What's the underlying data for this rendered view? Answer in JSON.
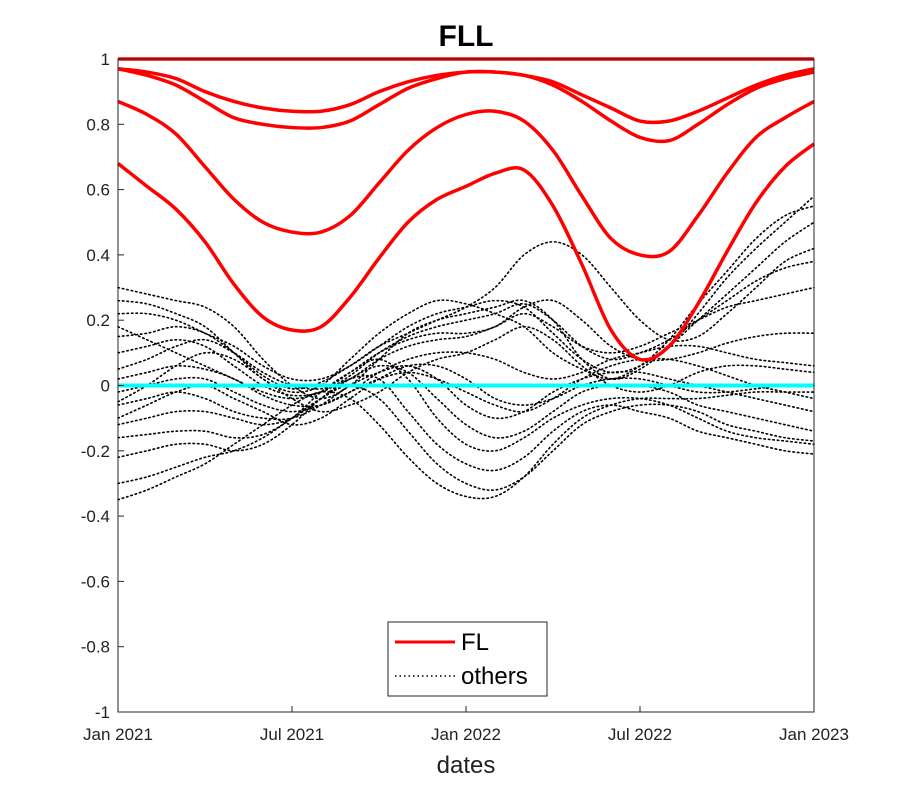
{
  "chart_data": {
    "type": "line",
    "title": "FLL",
    "xlabel": "dates",
    "ylabel": "",
    "xlim": [
      0,
      24
    ],
    "ylim": [
      -1,
      1
    ],
    "x_ticks": [
      {
        "value": 0,
        "label": "Jan 2021"
      },
      {
        "value": 6,
        "label": "Jul 2021"
      },
      {
        "value": 12,
        "label": "Jan 2022"
      },
      {
        "value": 18,
        "label": "Jul 2022"
      },
      {
        "value": 24,
        "label": "Jan 2023"
      }
    ],
    "y_ticks": [
      {
        "value": 1,
        "label": "1"
      },
      {
        "value": 0.8,
        "label": "0.8"
      },
      {
        "value": 0.6,
        "label": "0.6"
      },
      {
        "value": 0.4,
        "label": "0.4"
      },
      {
        "value": 0.2,
        "label": "0.2"
      },
      {
        "value": 0,
        "label": "0"
      },
      {
        "value": -0.2,
        "label": "-0.2"
      },
      {
        "value": -0.4,
        "label": "-0.4"
      },
      {
        "value": -0.6,
        "label": "-0.6"
      },
      {
        "value": -0.8,
        "label": "-0.8"
      },
      {
        "value": -1,
        "label": "-1"
      }
    ],
    "x": [
      0,
      1,
      2,
      3,
      4,
      5,
      6,
      7,
      8,
      9,
      10,
      11,
      12,
      13,
      14,
      15,
      16,
      17,
      18,
      19,
      20,
      21,
      22,
      23,
      24
    ],
    "legend": {
      "placement": "bottom-center",
      "entries": [
        "FL",
        "others"
      ]
    },
    "colors": {
      "fl": "#ff0000",
      "others": "#000000",
      "zero_line": "#00ffff"
    },
    "series": [
      {
        "name": "FL",
        "group": "fl",
        "values": [
          1,
          1,
          1,
          1,
          1,
          1,
          1,
          1,
          1,
          1,
          1,
          1,
          1,
          1,
          1,
          1,
          1,
          1,
          1,
          1,
          1,
          1,
          1,
          1,
          1
        ]
      },
      {
        "name": "FL",
        "group": "fl",
        "values": [
          0.97,
          0.96,
          0.94,
          0.9,
          0.87,
          0.85,
          0.84,
          0.84,
          0.86,
          0.9,
          0.93,
          0.95,
          0.96,
          0.96,
          0.95,
          0.93,
          0.89,
          0.85,
          0.81,
          0.81,
          0.84,
          0.88,
          0.92,
          0.95,
          0.97
        ]
      },
      {
        "name": "FL",
        "group": "fl",
        "values": [
          0.97,
          0.95,
          0.92,
          0.87,
          0.82,
          0.8,
          0.79,
          0.79,
          0.81,
          0.86,
          0.91,
          0.94,
          0.96,
          0.96,
          0.95,
          0.92,
          0.87,
          0.81,
          0.76,
          0.75,
          0.8,
          0.86,
          0.91,
          0.94,
          0.96
        ]
      },
      {
        "name": "FL",
        "group": "fl",
        "values": [
          0.87,
          0.83,
          0.77,
          0.67,
          0.57,
          0.5,
          0.47,
          0.47,
          0.52,
          0.62,
          0.72,
          0.79,
          0.83,
          0.84,
          0.81,
          0.72,
          0.58,
          0.45,
          0.4,
          0.41,
          0.52,
          0.65,
          0.76,
          0.82,
          0.87
        ]
      },
      {
        "name": "FL",
        "group": "fl",
        "values": [
          0.68,
          0.61,
          0.54,
          0.44,
          0.31,
          0.21,
          0.17,
          0.18,
          0.27,
          0.39,
          0.5,
          0.57,
          0.61,
          0.65,
          0.66,
          0.55,
          0.37,
          0.17,
          0.08,
          0.12,
          0.25,
          0.41,
          0.56,
          0.67,
          0.74
        ]
      },
      {
        "name": "others",
        "group": "others",
        "values": [
          0.3,
          0.28,
          0.26,
          0.24,
          0.18,
          0.08,
          0.0,
          -0.04,
          0.0,
          0.08,
          0.16,
          0.2,
          0.22,
          0.24,
          0.26,
          0.2,
          0.08,
          0.02,
          0.05,
          0.12,
          0.22,
          0.33,
          0.42,
          0.5,
          0.58
        ]
      },
      {
        "name": "others",
        "group": "others",
        "values": [
          0.26,
          0.25,
          0.22,
          0.18,
          0.1,
          0.02,
          -0.02,
          0.0,
          0.08,
          0.16,
          0.22,
          0.26,
          0.25,
          0.22,
          0.18,
          0.1,
          0.05,
          0.02,
          0.06,
          0.14,
          0.25,
          0.35,
          0.45,
          0.52,
          0.55
        ]
      },
      {
        "name": "others",
        "group": "others",
        "values": [
          0.15,
          0.16,
          0.18,
          0.16,
          0.1,
          0.03,
          -0.01,
          0.01,
          0.06,
          0.12,
          0.16,
          0.2,
          0.24,
          0.3,
          0.4,
          0.44,
          0.4,
          0.3,
          0.2,
          0.14,
          0.15,
          0.22,
          0.3,
          0.38,
          0.42
        ]
      },
      {
        "name": "others",
        "group": "others",
        "values": [
          0.1,
          0.12,
          0.14,
          0.12,
          0.06,
          0.0,
          -0.03,
          -0.02,
          0.03,
          0.1,
          0.15,
          0.18,
          0.2,
          0.22,
          0.25,
          0.2,
          0.12,
          0.08,
          0.1,
          0.14,
          0.2,
          0.26,
          0.32,
          0.36,
          0.38
        ]
      },
      {
        "name": "others",
        "group": "others",
        "values": [
          0.05,
          0.08,
          0.12,
          0.14,
          0.1,
          0.04,
          0.0,
          -0.01,
          0.02,
          0.08,
          0.12,
          0.14,
          0.15,
          0.18,
          0.22,
          0.18,
          0.12,
          0.1,
          0.12,
          0.16,
          0.2,
          0.24,
          0.26,
          0.28,
          0.3
        ]
      },
      {
        "name": "others",
        "group": "others",
        "values": [
          0.18,
          0.14,
          0.1,
          0.06,
          0.02,
          -0.02,
          -0.04,
          -0.02,
          0.04,
          0.1,
          0.14,
          0.16,
          0.16,
          0.18,
          0.24,
          0.26,
          0.2,
          0.12,
          0.08,
          0.08,
          0.1,
          0.13,
          0.15,
          0.16,
          0.16
        ]
      },
      {
        "name": "others",
        "group": "others",
        "values": [
          0.02,
          0.04,
          0.06,
          0.05,
          0.02,
          -0.03,
          -0.06,
          -0.06,
          -0.02,
          0.04,
          0.08,
          0.1,
          0.1,
          0.08,
          0.04,
          0.02,
          0.04,
          0.08,
          0.1,
          0.12,
          0.12,
          0.1,
          0.08,
          0.07,
          0.06
        ]
      },
      {
        "name": "others",
        "group": "others",
        "values": [
          -0.02,
          0.0,
          0.02,
          0.02,
          -0.02,
          -0.06,
          -0.08,
          -0.06,
          -0.02,
          0.02,
          0.04,
          0.02,
          -0.02,
          -0.06,
          -0.08,
          -0.04,
          0.02,
          0.06,
          0.08,
          0.08,
          0.06,
          0.03,
          0.0,
          -0.02,
          -0.04
        ]
      },
      {
        "name": "others",
        "group": "others",
        "values": [
          -0.06,
          -0.04,
          -0.02,
          -0.04,
          -0.08,
          -0.1,
          -0.1,
          -0.06,
          0.0,
          0.04,
          0.06,
          0.02,
          -0.06,
          -0.1,
          -0.08,
          -0.02,
          0.02,
          0.04,
          0.04,
          0.02,
          0.0,
          -0.02,
          -0.04,
          -0.06,
          -0.08
        ]
      },
      {
        "name": "others",
        "group": "others",
        "values": [
          -0.12,
          -0.1,
          -0.08,
          -0.08,
          -0.1,
          -0.12,
          -0.1,
          -0.04,
          0.02,
          0.06,
          0.04,
          -0.04,
          -0.12,
          -0.16,
          -0.14,
          -0.08,
          -0.02,
          0.0,
          0.0,
          -0.02,
          -0.06,
          -0.08,
          -0.1,
          -0.12,
          -0.14
        ]
      },
      {
        "name": "others",
        "group": "others",
        "values": [
          -0.16,
          -0.15,
          -0.14,
          -0.14,
          -0.16,
          -0.15,
          -0.1,
          -0.02,
          0.04,
          0.08,
          0.02,
          -0.1,
          -0.18,
          -0.2,
          -0.16,
          -0.1,
          -0.06,
          -0.04,
          -0.04,
          -0.06,
          -0.1,
          -0.14,
          -0.16,
          -0.17,
          -0.18
        ]
      },
      {
        "name": "others",
        "group": "others",
        "values": [
          -0.22,
          -0.2,
          -0.18,
          -0.18,
          -0.2,
          -0.18,
          -0.12,
          -0.04,
          0.02,
          0.02,
          -0.08,
          -0.18,
          -0.24,
          -0.26,
          -0.22,
          -0.14,
          -0.08,
          -0.06,
          -0.08,
          -0.1,
          -0.14,
          -0.16,
          -0.18,
          -0.2,
          -0.21
        ]
      },
      {
        "name": "others",
        "group": "others",
        "values": [
          -0.3,
          -0.28,
          -0.25,
          -0.22,
          -0.2,
          -0.16,
          -0.1,
          -0.04,
          0.0,
          -0.04,
          -0.14,
          -0.24,
          -0.3,
          -0.32,
          -0.28,
          -0.2,
          -0.12,
          -0.08,
          -0.06,
          -0.06,
          -0.08,
          -0.12,
          -0.14,
          -0.16,
          -0.17
        ]
      },
      {
        "name": "others",
        "group": "others",
        "values": [
          -0.35,
          -0.32,
          -0.28,
          -0.24,
          -0.18,
          -0.12,
          -0.06,
          -0.02,
          -0.04,
          -0.12,
          -0.22,
          -0.3,
          -0.34,
          -0.34,
          -0.28,
          -0.18,
          -0.1,
          -0.06,
          -0.04,
          -0.04,
          -0.04,
          -0.03,
          -0.02,
          -0.02,
          -0.02
        ]
      },
      {
        "name": "others",
        "group": "others",
        "values": [
          -0.05,
          0.0,
          0.06,
          0.1,
          0.08,
          0.02,
          -0.04,
          -0.08,
          -0.06,
          -0.02,
          0.04,
          0.08,
          0.1,
          0.14,
          0.18,
          0.14,
          0.06,
          0.0,
          -0.02,
          0.0,
          0.04,
          0.06,
          0.06,
          0.05,
          0.04
        ]
      },
      {
        "name": "others",
        "group": "others",
        "values": [
          0.22,
          0.22,
          0.2,
          0.16,
          0.12,
          0.06,
          0.02,
          0.02,
          0.06,
          0.12,
          0.18,
          0.22,
          0.24,
          0.26,
          0.24,
          0.16,
          0.08,
          0.04,
          0.06,
          0.12,
          0.2,
          0.28,
          0.36,
          0.44,
          0.5
        ]
      },
      {
        "name": "others",
        "group": "others",
        "values": [
          -0.1,
          -0.06,
          -0.02,
          0.0,
          -0.04,
          -0.08,
          -0.12,
          -0.1,
          -0.04,
          0.02,
          0.06,
          0.06,
          0.02,
          -0.04,
          -0.06,
          -0.04,
          0.0,
          0.02,
          0.02,
          0.0,
          -0.02,
          -0.02,
          -0.01,
          0.0,
          0.0
        ]
      }
    ]
  }
}
